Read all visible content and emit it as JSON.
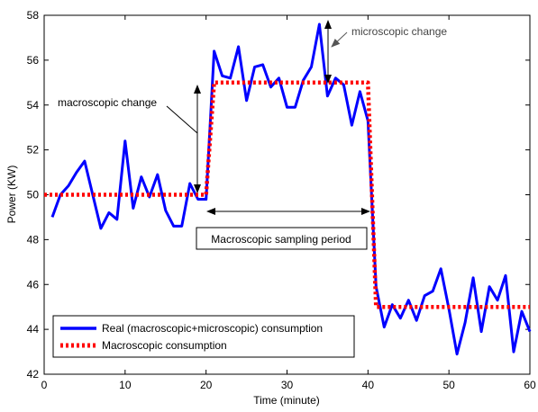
{
  "chart_data": {
    "type": "line",
    "xlabel": "Time (minute)",
    "ylabel": "Power (KW)",
    "xlim": [
      0,
      60
    ],
    "ylim": [
      42,
      58
    ],
    "xticks": [
      0,
      10,
      20,
      30,
      40,
      50,
      60
    ],
    "yticks": [
      42,
      44,
      46,
      48,
      50,
      52,
      54,
      56,
      58
    ],
    "grid": false,
    "legend_position": "bottom-left",
    "series": [
      {
        "name": "Real (macroscopic+microscopic) consumption",
        "style": "solid",
        "color": "#0000ff",
        "x": [
          1,
          2,
          3,
          4,
          5,
          6,
          7,
          8,
          9,
          10,
          11,
          12,
          13,
          14,
          15,
          16,
          17,
          18,
          19,
          20,
          21,
          22,
          23,
          24,
          25,
          26,
          27,
          28,
          29,
          30,
          31,
          32,
          33,
          34,
          35,
          36,
          37,
          38,
          39,
          40,
          41,
          42,
          43,
          44,
          45,
          46,
          47,
          48,
          49,
          50,
          51,
          52,
          53,
          54,
          55,
          56,
          57,
          58,
          59,
          60
        ],
        "y": [
          49.0,
          50.0,
          50.4,
          51.0,
          51.5,
          50.0,
          48.5,
          49.2,
          48.9,
          52.4,
          49.4,
          50.8,
          49.9,
          50.9,
          49.3,
          48.6,
          48.6,
          50.5,
          49.8,
          49.8,
          56.4,
          55.3,
          55.2,
          56.6,
          54.2,
          55.7,
          55.8,
          54.8,
          55.2,
          53.9,
          53.9,
          55.1,
          55.7,
          57.6,
          54.4,
          55.2,
          54.9,
          53.1,
          54.6,
          53.3,
          45.9,
          44.1,
          45.1,
          44.5,
          45.3,
          44.4,
          45.5,
          45.7,
          46.7,
          44.9,
          42.9,
          44.3,
          46.3,
          43.9,
          45.9,
          45.3,
          46.4,
          43.0,
          44.8,
          43.9
        ]
      },
      {
        "name": "Macroscopic consumption",
        "style": "dotted",
        "color": "#ff0000",
        "x": [
          0,
          20,
          21,
          40,
          41,
          60
        ],
        "y": [
          50,
          50,
          55,
          55,
          45,
          45
        ]
      }
    ],
    "annotations": [
      {
        "id": "macro_change",
        "text": "macroscopic change"
      },
      {
        "id": "micro_change",
        "text": "microscopic change"
      },
      {
        "id": "sampling_period",
        "text": "Macroscopic sampling period"
      }
    ]
  }
}
